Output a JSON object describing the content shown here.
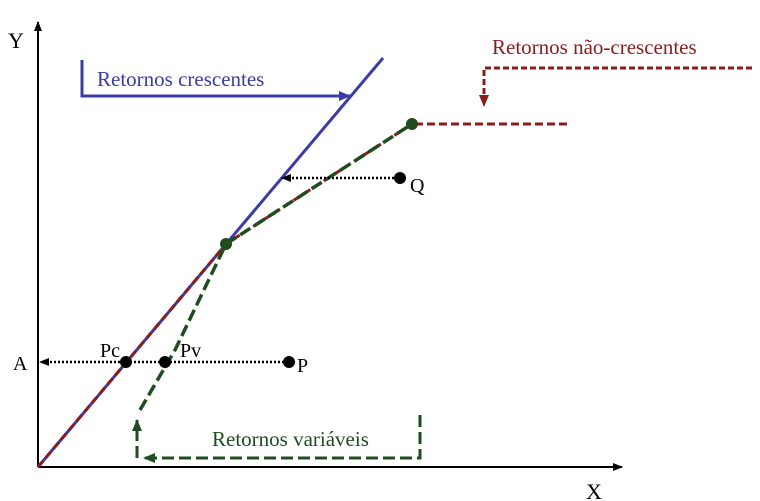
{
  "axes": {
    "y_label": "Y",
    "x_label": "X"
  },
  "labels": {
    "crs": "Retornos crescentes",
    "nrs": "Retornos não-crescentes",
    "vrs": "Retornos variáveis",
    "q": "Q",
    "p": "P",
    "pc": "Pc",
    "pv": "Pv",
    "a": "A"
  },
  "colors": {
    "crs": "#3b3ba8",
    "nrs": "#8b1c1c",
    "vrs": "#1f4d1f",
    "projection": "#000000"
  }
}
